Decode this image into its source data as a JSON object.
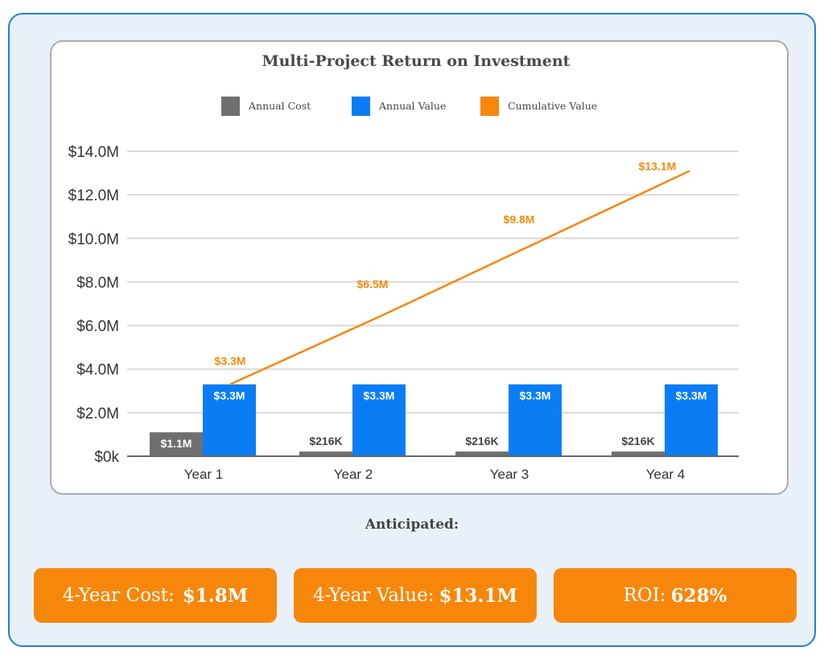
{
  "summary": {
    "heading": "Anticipated:",
    "stats": [
      {
        "label": "4-Year Cost:",
        "value": "$1.8M"
      },
      {
        "label": "4-Year Value:",
        "value": "$13.1M"
      },
      {
        "label": "ROI:",
        "value": "628%"
      }
    ]
  },
  "colors": {
    "annual_cost": "#6f6f6f",
    "annual_value": "#0a7df5",
    "cumulative_value": "#f7870b",
    "panel_border": "#1f7fe0",
    "panel_bg": "#e8f1fa"
  },
  "chart_data": {
    "type": "bar",
    "title": "Multi-Project Return on Investment",
    "legend_position": "top",
    "grid": true,
    "ylim": [
      0,
      14
    ],
    "yticks": [
      0,
      2,
      4,
      6,
      8,
      10,
      12,
      14
    ],
    "ytick_labels": [
      "$0k",
      "$2.0M",
      "$4.0M",
      "$6.0M",
      "$8.0M",
      "$10.0M",
      "$12.0M",
      "$14.0M"
    ],
    "categories": [
      "Year 1",
      "Year 2",
      "Year 3",
      "Year 4"
    ],
    "series": [
      {
        "name": "Annual Cost",
        "kind": "bar",
        "values": [
          1.1,
          0.216,
          0.216,
          0.216
        ],
        "labels": [
          "$1.1M",
          "$216K",
          "$216K",
          "$216K"
        ]
      },
      {
        "name": "Annual Value",
        "kind": "bar",
        "values": [
          3.3,
          3.3,
          3.3,
          3.3
        ],
        "labels": [
          "$3.3M",
          "$3.3M",
          "$3.3M",
          "$3.3M"
        ]
      },
      {
        "name": "Cumulative Value",
        "kind": "line",
        "values": [
          3.3,
          6.5,
          9.8,
          13.1
        ],
        "labels": [
          "$3.3M",
          "$6.5M",
          "$9.8M",
          "$13.1M"
        ]
      }
    ]
  }
}
